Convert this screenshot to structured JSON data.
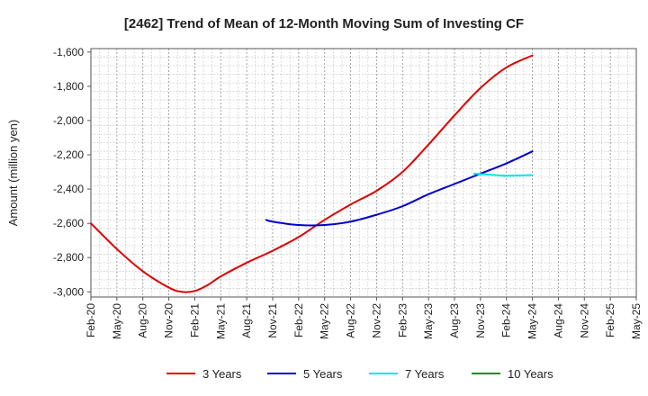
{
  "chart_data": {
    "type": "line",
    "title": "[2462]  Trend of Mean of 12-Month Moving Sum of Investing CF",
    "xlabel": "",
    "ylabel": "Amount (million yen)",
    "ylim": [
      -3030,
      -1580
    ],
    "yticks": [
      -1600,
      -1800,
      -2000,
      -2200,
      -2400,
      -2600,
      -2800,
      -3000
    ],
    "ytick_labels": [
      "-1,600",
      "-1,800",
      "-2,000",
      "-2,200",
      "-2,400",
      "-2,600",
      "-2,800",
      "-3,000"
    ],
    "x_categories": [
      "Feb-20",
      "May-20",
      "Aug-20",
      "Nov-20",
      "Feb-21",
      "May-21",
      "Aug-21",
      "Nov-21",
      "Feb-22",
      "May-22",
      "Aug-22",
      "Nov-22",
      "Feb-23",
      "May-23",
      "Aug-23",
      "Nov-23",
      "Feb-24",
      "May-24",
      "Aug-24",
      "Nov-24",
      "Feb-25",
      "May-25"
    ],
    "grid": true,
    "legend_position": "bottom",
    "series": [
      {
        "name": "3 Years",
        "color": "#dd0000",
        "x": [
          0,
          1,
          2,
          3,
          3.5,
          4,
          4.5,
          5,
          6,
          7,
          8,
          9,
          10,
          11,
          12,
          13,
          14,
          15,
          16,
          17
        ],
        "values": [
          -2600,
          -2750,
          -2880,
          -2975,
          -3000,
          -2995,
          -2960,
          -2910,
          -2830,
          -2760,
          -2680,
          -2580,
          -2490,
          -2410,
          -2300,
          -2140,
          -1970,
          -1810,
          -1690,
          -1620
        ]
      },
      {
        "name": "5 Years",
        "color": "#0000cc",
        "x": [
          6.75,
          7,
          8,
          9,
          10,
          11,
          12,
          13,
          14,
          15,
          16,
          17
        ],
        "values": [
          -2580,
          -2590,
          -2610,
          -2610,
          -2590,
          -2550,
          -2500,
          -2430,
          -2370,
          -2310,
          -2250,
          -2180
        ]
      },
      {
        "name": "7 Years",
        "color": "#00e5ee",
        "x": [
          14.75,
          15,
          16,
          17
        ],
        "values": [
          -2310,
          -2312,
          -2322,
          -2318
        ]
      },
      {
        "name": "10 Years",
        "color": "#228b22",
        "x": [],
        "values": []
      }
    ]
  }
}
